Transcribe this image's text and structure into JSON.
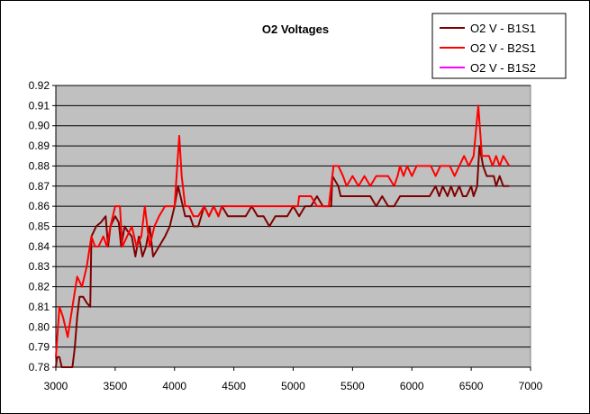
{
  "chart_data": {
    "type": "line",
    "title": "O2 Voltages",
    "xlabel": "",
    "ylabel": "",
    "xlim": [
      3000,
      7000
    ],
    "ylim": [
      0.78,
      0.92
    ],
    "x_ticks": [
      "3000",
      "3500",
      "4000",
      "4500",
      "5000",
      "5500",
      "6000",
      "6500",
      "7000"
    ],
    "y_ticks": [
      "0.78",
      "0.79",
      "0.80",
      "0.81",
      "0.82",
      "0.83",
      "0.84",
      "0.85",
      "0.86",
      "0.87",
      "0.88",
      "0.89",
      "0.90",
      "0.91",
      "0.92"
    ],
    "grid": true,
    "legend_position": "top-right",
    "plot_background": "#c0c0c0",
    "series": [
      {
        "name": "O2 V - B1S1",
        "color": "#800000",
        "points": [
          [
            3000,
            0.78
          ],
          [
            3010,
            0.785
          ],
          [
            3030,
            0.785
          ],
          [
            3050,
            0.78
          ],
          [
            3080,
            0.775
          ],
          [
            3110,
            0.775
          ],
          [
            3140,
            0.78
          ],
          [
            3160,
            0.79
          ],
          [
            3180,
            0.805
          ],
          [
            3200,
            0.815
          ],
          [
            3230,
            0.815
          ],
          [
            3260,
            0.812
          ],
          [
            3290,
            0.81
          ],
          [
            3300,
            0.845
          ],
          [
            3340,
            0.85
          ],
          [
            3380,
            0.852
          ],
          [
            3420,
            0.855
          ],
          [
            3440,
            0.84
          ],
          [
            3460,
            0.85
          ],
          [
            3500,
            0.855
          ],
          [
            3530,
            0.852
          ],
          [
            3550,
            0.84
          ],
          [
            3580,
            0.85
          ],
          [
            3600,
            0.848
          ],
          [
            3640,
            0.845
          ],
          [
            3670,
            0.835
          ],
          [
            3700,
            0.845
          ],
          [
            3730,
            0.835
          ],
          [
            3760,
            0.84
          ],
          [
            3790,
            0.85
          ],
          [
            3820,
            0.835
          ],
          [
            3870,
            0.84
          ],
          [
            3920,
            0.845
          ],
          [
            3960,
            0.85
          ],
          [
            4000,
            0.86
          ],
          [
            4030,
            0.87
          ],
          [
            4070,
            0.86
          ],
          [
            4090,
            0.855
          ],
          [
            4130,
            0.855
          ],
          [
            4160,
            0.85
          ],
          [
            4200,
            0.85
          ],
          [
            4250,
            0.86
          ],
          [
            4290,
            0.855
          ],
          [
            4330,
            0.86
          ],
          [
            4370,
            0.855
          ],
          [
            4400,
            0.86
          ],
          [
            4450,
            0.855
          ],
          [
            4500,
            0.855
          ],
          [
            4550,
            0.855
          ],
          [
            4600,
            0.855
          ],
          [
            4650,
            0.86
          ],
          [
            4700,
            0.855
          ],
          [
            4750,
            0.855
          ],
          [
            4800,
            0.85
          ],
          [
            4850,
            0.855
          ],
          [
            4900,
            0.855
          ],
          [
            4950,
            0.855
          ],
          [
            5000,
            0.86
          ],
          [
            5050,
            0.855
          ],
          [
            5100,
            0.86
          ],
          [
            5150,
            0.86
          ],
          [
            5200,
            0.865
          ],
          [
            5250,
            0.86
          ],
          [
            5320,
            0.86
          ],
          [
            5330,
            0.875
          ],
          [
            5380,
            0.87
          ],
          [
            5400,
            0.865
          ],
          [
            5450,
            0.865
          ],
          [
            5500,
            0.865
          ],
          [
            5550,
            0.865
          ],
          [
            5600,
            0.865
          ],
          [
            5650,
            0.865
          ],
          [
            5700,
            0.86
          ],
          [
            5750,
            0.865
          ],
          [
            5800,
            0.86
          ],
          [
            5850,
            0.86
          ],
          [
            5900,
            0.865
          ],
          [
            5950,
            0.865
          ],
          [
            6000,
            0.865
          ],
          [
            6050,
            0.865
          ],
          [
            6100,
            0.865
          ],
          [
            6150,
            0.865
          ],
          [
            6200,
            0.87
          ],
          [
            6230,
            0.865
          ],
          [
            6260,
            0.87
          ],
          [
            6300,
            0.865
          ],
          [
            6330,
            0.87
          ],
          [
            6360,
            0.865
          ],
          [
            6400,
            0.87
          ],
          [
            6430,
            0.865
          ],
          [
            6460,
            0.865
          ],
          [
            6500,
            0.87
          ],
          [
            6520,
            0.865
          ],
          [
            6550,
            0.87
          ],
          [
            6570,
            0.89
          ],
          [
            6600,
            0.88
          ],
          [
            6630,
            0.875
          ],
          [
            6660,
            0.875
          ],
          [
            6690,
            0.875
          ],
          [
            6710,
            0.87
          ],
          [
            6740,
            0.875
          ],
          [
            6770,
            0.87
          ],
          [
            6820,
            0.87
          ]
        ]
      },
      {
        "name": "O2 V - B2S1",
        "color": "#ff0000",
        "points": [
          [
            3000,
            0.785
          ],
          [
            3030,
            0.81
          ],
          [
            3060,
            0.805
          ],
          [
            3100,
            0.795
          ],
          [
            3140,
            0.81
          ],
          [
            3180,
            0.825
          ],
          [
            3220,
            0.82
          ],
          [
            3260,
            0.83
          ],
          [
            3300,
            0.845
          ],
          [
            3330,
            0.84
          ],
          [
            3360,
            0.84
          ],
          [
            3400,
            0.845
          ],
          [
            3430,
            0.84
          ],
          [
            3460,
            0.85
          ],
          [
            3500,
            0.86
          ],
          [
            3540,
            0.86
          ],
          [
            3560,
            0.84
          ],
          [
            3600,
            0.845
          ],
          [
            3640,
            0.85
          ],
          [
            3680,
            0.84
          ],
          [
            3720,
            0.845
          ],
          [
            3750,
            0.86
          ],
          [
            3790,
            0.84
          ],
          [
            3830,
            0.85
          ],
          [
            3870,
            0.855
          ],
          [
            3920,
            0.86
          ],
          [
            3960,
            0.86
          ],
          [
            4000,
            0.86
          ],
          [
            4040,
            0.895
          ],
          [
            4060,
            0.875
          ],
          [
            4090,
            0.86
          ],
          [
            4120,
            0.86
          ],
          [
            4160,
            0.855
          ],
          [
            4200,
            0.855
          ],
          [
            4250,
            0.86
          ],
          [
            4290,
            0.855
          ],
          [
            4330,
            0.86
          ],
          [
            4370,
            0.855
          ],
          [
            4400,
            0.86
          ],
          [
            4450,
            0.86
          ],
          [
            4500,
            0.86
          ],
          [
            4600,
            0.86
          ],
          [
            4700,
            0.86
          ],
          [
            4800,
            0.86
          ],
          [
            4900,
            0.86
          ],
          [
            5000,
            0.86
          ],
          [
            5040,
            0.86
          ],
          [
            5050,
            0.865
          ],
          [
            5100,
            0.865
          ],
          [
            5150,
            0.865
          ],
          [
            5200,
            0.86
          ],
          [
            5250,
            0.86
          ],
          [
            5300,
            0.86
          ],
          [
            5340,
            0.88
          ],
          [
            5380,
            0.88
          ],
          [
            5420,
            0.875
          ],
          [
            5450,
            0.87
          ],
          [
            5500,
            0.875
          ],
          [
            5550,
            0.87
          ],
          [
            5600,
            0.875
          ],
          [
            5650,
            0.87
          ],
          [
            5700,
            0.875
          ],
          [
            5750,
            0.875
          ],
          [
            5800,
            0.875
          ],
          [
            5850,
            0.87
          ],
          [
            5880,
            0.875
          ],
          [
            5900,
            0.88
          ],
          [
            5930,
            0.875
          ],
          [
            5960,
            0.88
          ],
          [
            6000,
            0.875
          ],
          [
            6040,
            0.88
          ],
          [
            6080,
            0.88
          ],
          [
            6120,
            0.88
          ],
          [
            6160,
            0.88
          ],
          [
            6200,
            0.875
          ],
          [
            6240,
            0.88
          ],
          [
            6280,
            0.88
          ],
          [
            6320,
            0.88
          ],
          [
            6360,
            0.875
          ],
          [
            6400,
            0.88
          ],
          [
            6440,
            0.885
          ],
          [
            6480,
            0.88
          ],
          [
            6520,
            0.885
          ],
          [
            6560,
            0.91
          ],
          [
            6590,
            0.885
          ],
          [
            6620,
            0.885
          ],
          [
            6650,
            0.885
          ],
          [
            6680,
            0.88
          ],
          [
            6710,
            0.885
          ],
          [
            6740,
            0.88
          ],
          [
            6770,
            0.885
          ],
          [
            6820,
            0.88
          ]
        ]
      },
      {
        "name": "O2 V - B1S2",
        "color": "#ff00ff",
        "points": []
      }
    ]
  }
}
